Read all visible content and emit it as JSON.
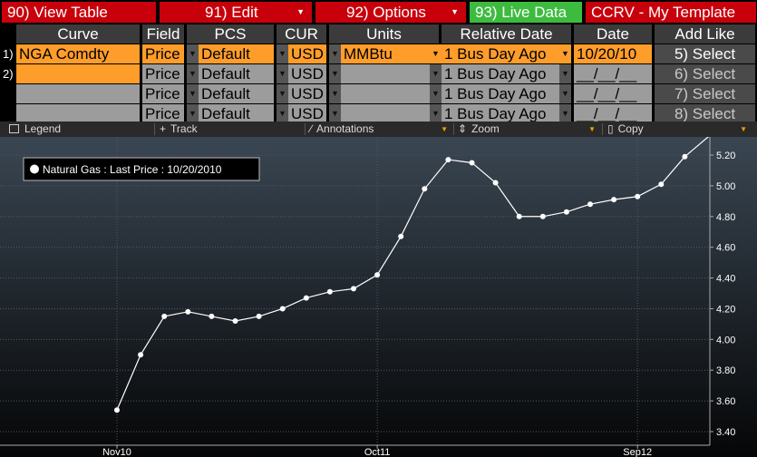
{
  "topbar": {
    "view_table": "90) View Table",
    "edit": "91) Edit",
    "options": "92) Options",
    "live_data": "93)  Live Data",
    "template": "CCRV - My Template"
  },
  "headers": [
    "Curve",
    "Field",
    "PCS",
    "CUR",
    "Units",
    "Relative Date",
    "Date",
    "Add Like"
  ],
  "rows": [
    {
      "num": "1)",
      "curve": "NGA Comdty",
      "field": "Price",
      "pcs": "Default",
      "cur": "USD",
      "units": "MMBtu",
      "rel": "1 Bus Day Ago",
      "date": "10/20/10",
      "select": "5)  Select"
    },
    {
      "num": "2)",
      "curve": "",
      "field": "Price",
      "pcs": "Default",
      "cur": "USD",
      "units": "",
      "rel": "1 Bus Day Ago",
      "date": "__/__/__",
      "select": "6)  Select"
    },
    {
      "num": "",
      "curve": "",
      "field": "Price",
      "pcs": "Default",
      "cur": "USD",
      "units": "",
      "rel": "1 Bus Day Ago",
      "date": "__/__/__",
      "select": "7)  Select"
    },
    {
      "num": "",
      "curve": "",
      "field": "Price",
      "pcs": "Default",
      "cur": "USD",
      "units": "",
      "rel": "1 Bus Day Ago",
      "date": "__/__/__",
      "select": "8)  Select"
    }
  ],
  "toolbar": {
    "legend": "Legend",
    "track": "Track",
    "annotations": "Annotations",
    "zoom": "Zoom",
    "copy": "Copy"
  },
  "chart_data": {
    "type": "line",
    "legend": "Natural Gas : Last Price : 10/20/2010",
    "ylim": [
      3.4,
      5.3
    ],
    "yticks": [
      "5.20",
      "5.00",
      "4.80",
      "4.60",
      "4.40",
      "4.20",
      "4.00",
      "3.80",
      "3.60",
      "3.40"
    ],
    "xticks": [
      {
        "label": "Nov10",
        "index": 0
      },
      {
        "label": "Oct11",
        "index": 11
      },
      {
        "label": "Sep12",
        "index": 22
      }
    ],
    "series": [
      {
        "color": "#ffffff",
        "values": [
          3.54,
          3.9,
          4.15,
          4.18,
          4.15,
          4.12,
          4.15,
          4.2,
          4.27,
          4.31,
          4.33,
          4.42,
          4.67,
          4.98,
          5.17,
          5.15,
          5.02,
          4.8,
          4.8,
          4.83,
          4.88,
          4.91,
          4.93,
          5.01,
          5.19,
          5.32
        ]
      }
    ]
  }
}
